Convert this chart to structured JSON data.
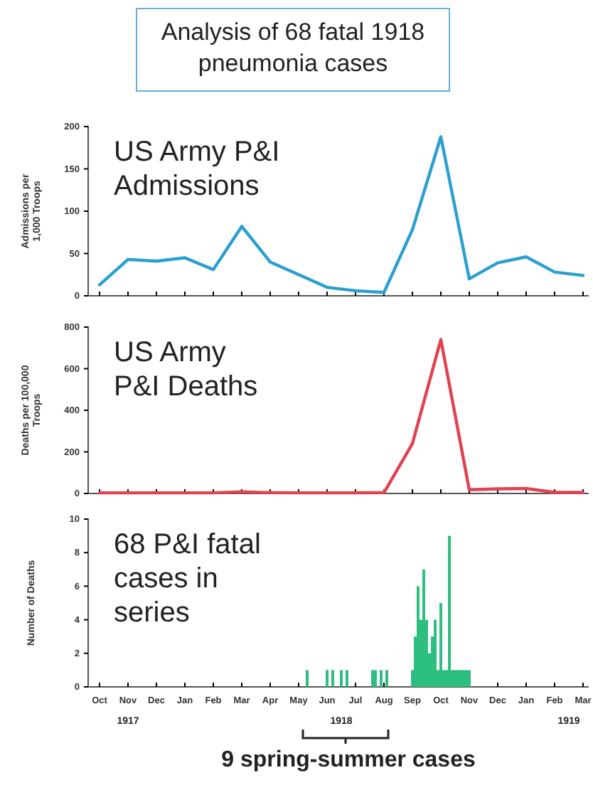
{
  "chart_data": [
    {
      "type": "line",
      "title": "Analysis of 68 fatal 1918 pneumonia cases",
      "subtitle": "US Army P&I Admissions",
      "ylabel": "Admissions per 1,000 Troops",
      "categories": [
        null,
        null,
        null,
        null,
        null,
        null,
        null,
        null,
        null,
        null,
        null,
        null,
        null,
        null,
        null,
        null,
        null,
        null
      ],
      "series": [
        {
          "color": "#2a9fd0",
          "values": [
            13,
            43,
            41,
            45,
            31,
            82,
            40,
            25,
            10,
            6,
            4,
            78,
            188,
            20,
            39,
            46,
            28,
            24
          ]
        }
      ],
      "ylim": [
        0,
        200
      ],
      "yticks": [
        0,
        50,
        100,
        150,
        200
      ],
      "tick_labels": "y"
    },
    {
      "type": "line",
      "subtitle": "US Army P&I Deaths",
      "ylabel": "Deaths per 100,000 Troops",
      "categories": [
        null,
        null,
        null,
        null,
        null,
        null,
        null,
        null,
        null,
        null,
        null,
        null,
        null,
        null,
        null,
        null,
        null,
        null
      ],
      "series": [
        {
          "color": "#e0424f",
          "values": [
            3,
            3,
            3,
            3,
            3,
            8,
            4,
            3,
            3,
            3,
            4,
            240,
            740,
            18,
            22,
            24,
            5,
            5
          ]
        }
      ],
      "ylim": [
        0,
        800
      ],
      "yticks": [
        0,
        200,
        400,
        600,
        800
      ],
      "tick_labels": "y"
    },
    {
      "type": "bar",
      "subtitle": "68 P&I fatal cases in series",
      "ylabel": "Number of Deaths",
      "categories": [
        "Oct",
        null,
        null,
        null,
        null,
        null,
        null,
        null,
        null,
        null,
        "Nov",
        null,
        null,
        null,
        null,
        null,
        null,
        null,
        null,
        null,
        "Dec",
        null,
        null,
        null,
        null,
        null,
        null,
        null,
        null,
        null,
        "Jan",
        null,
        null,
        null,
        null,
        null,
        null,
        null,
        null,
        null,
        "Feb",
        null,
        null,
        null,
        null,
        null,
        null,
        null,
        null,
        null,
        "Mar",
        null,
        null,
        null,
        null,
        null,
        null,
        null,
        null,
        null,
        "Apr",
        null,
        null,
        null,
        null,
        null,
        null,
        null,
        null,
        null,
        "May",
        null,
        null,
        null,
        null,
        null,
        null,
        null,
        null,
        null,
        "Jun",
        null,
        null,
        null,
        null,
        null,
        null,
        null,
        null,
        null,
        "Jul",
        null,
        null,
        null,
        null,
        null,
        null,
        null,
        null,
        null,
        "Aug",
        null,
        null,
        null,
        null,
        null,
        null,
        null,
        null,
        null,
        "Sep",
        null,
        null,
        null,
        null,
        null,
        null,
        null,
        null,
        null,
        "Oct",
        null,
        null,
        null,
        null,
        null,
        null,
        null,
        null,
        null,
        "Nov",
        null,
        null,
        null,
        null,
        null,
        null,
        null,
        null,
        null,
        "Dec",
        null,
        null,
        null,
        null,
        null,
        null,
        null,
        null,
        null,
        "Jan",
        null,
        null,
        null,
        null,
        null,
        null,
        null,
        null,
        null,
        "Feb",
        null,
        null,
        null,
        null,
        null,
        null,
        null,
        null,
        null,
        "Mar"
      ],
      "series": [
        {
          "color": "#2dbf7f",
          "values": [
            0,
            0,
            0,
            0,
            0,
            0,
            0,
            0,
            0,
            0,
            0,
            0,
            0,
            0,
            0,
            0,
            0,
            0,
            0,
            0,
            0,
            0,
            0,
            0,
            0,
            0,
            0,
            0,
            0,
            0,
            0,
            0,
            0,
            0,
            0,
            0,
            0,
            0,
            0,
            0,
            0,
            0,
            0,
            0,
            0,
            0,
            0,
            0,
            0,
            0,
            0,
            0,
            0,
            0,
            0,
            0,
            0,
            0,
            0,
            0,
            0,
            0,
            0,
            0,
            0,
            0,
            0,
            0,
            0,
            0,
            0,
            0,
            0,
            1,
            0,
            0,
            0,
            0,
            0,
            0,
            1,
            0,
            1,
            0,
            0,
            1,
            0,
            1,
            0,
            0,
            0,
            0,
            0,
            0,
            0,
            0,
            1,
            1,
            0,
            1,
            0,
            1,
            0,
            0,
            0,
            0,
            0,
            0,
            0,
            0,
            1,
            3,
            6,
            4,
            7,
            4,
            2,
            3,
            4,
            1,
            5,
            1,
            1,
            9,
            1,
            1,
            1,
            1,
            1,
            1,
            1,
            0,
            0,
            0,
            0,
            0,
            0,
            0,
            0,
            0,
            0,
            0,
            0,
            0,
            0,
            0,
            0,
            0,
            0,
            0,
            0,
            0,
            0,
            0,
            0,
            0,
            0,
            0,
            0,
            0,
            0,
            0,
            0,
            0,
            0,
            0,
            0,
            0,
            0,
            0,
            0
          ]
        }
      ],
      "ylim": [
        0,
        10
      ],
      "yticks": [
        0,
        2,
        4,
        6,
        8,
        10
      ],
      "annotations": [
        "1917",
        "1918",
        "1919",
        "9 spring-summer cases"
      ]
    }
  ]
}
